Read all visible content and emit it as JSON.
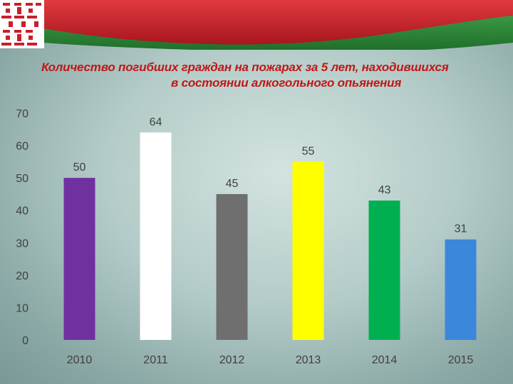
{
  "colors": {
    "title": "#c01818",
    "flag_red": "#c8202a",
    "flag_green": "#2e8b3a",
    "flag_ornament_bg": "#ffffff"
  },
  "chart_data": {
    "type": "bar",
    "title_line1": "Количество погибших граждан на пожарах за 5 лет, находившихся",
    "title_line2": "в состоянии алкогольного опьянения",
    "xlabel": "",
    "ylabel": "",
    "categories": [
      "2010",
      "2011",
      "2012",
      "2013",
      "2014",
      "2015"
    ],
    "values": [
      50,
      64,
      45,
      55,
      43,
      31
    ],
    "bar_colors": [
      "#7030a0",
      "#ffffff",
      "#6f6f6f",
      "#ffff00",
      "#00b050",
      "#3a87dc"
    ],
    "ylim": [
      0,
      70
    ],
    "yticks": [
      0,
      10,
      20,
      30,
      40,
      50,
      60,
      70
    ],
    "grid": false,
    "legend": "none"
  }
}
